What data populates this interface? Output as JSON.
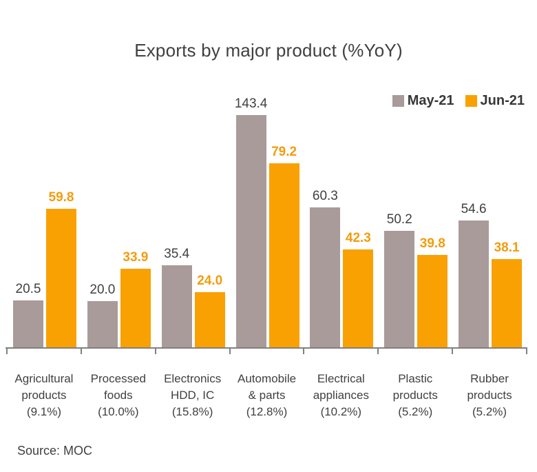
{
  "title": "Exports by major product (%YoY)",
  "source": "Source: MOC",
  "colors": {
    "background": "#FFFFFF",
    "text": "#404040",
    "axis": "#808080",
    "may_bar": "#A89B9A",
    "jun_bar": "#F9A102",
    "jun_label": "#F29C0B"
  },
  "legend": {
    "position": "top-right",
    "items": [
      {
        "label": "May-21",
        "color": "#A89B9A"
      },
      {
        "label": "Jun-21",
        "color": "#F9A102"
      }
    ]
  },
  "chart_data": {
    "type": "bar",
    "title": "Exports by major product (%YoY)",
    "categories": [
      "Agricultural\nproducts\n(9.1%)",
      "Processed\nfoods\n(10.0%)",
      "Electronics\nHDD, IC\n(15.8%)",
      "Automobile\n& parts\n(12.8%)",
      "Electrical\nappliances\n(10.2%)",
      "Plastic\nproducts\n(5.2%)",
      "Rubber\nproducts\n(5.2%)"
    ],
    "series": [
      {
        "name": "May-21",
        "color": "#A89B9A",
        "label_color": "#404040",
        "label_weight": 500,
        "values": [
          20.5,
          20.0,
          35.4,
          143.4,
          60.3,
          50.2,
          54.6
        ]
      },
      {
        "name": "Jun-21",
        "color": "#F9A102",
        "label_color": "#F29C0B",
        "label_weight": 700,
        "values": [
          59.8,
          33.9,
          24.0,
          79.2,
          42.3,
          39.8,
          38.1
        ]
      }
    ],
    "xlabel": "",
    "ylabel": "",
    "ylim": [
      0,
      100
    ],
    "clip_values_above_max": true,
    "grid": false,
    "y_axis_visible": false,
    "value_labels": true,
    "legend_position": "top-right"
  }
}
